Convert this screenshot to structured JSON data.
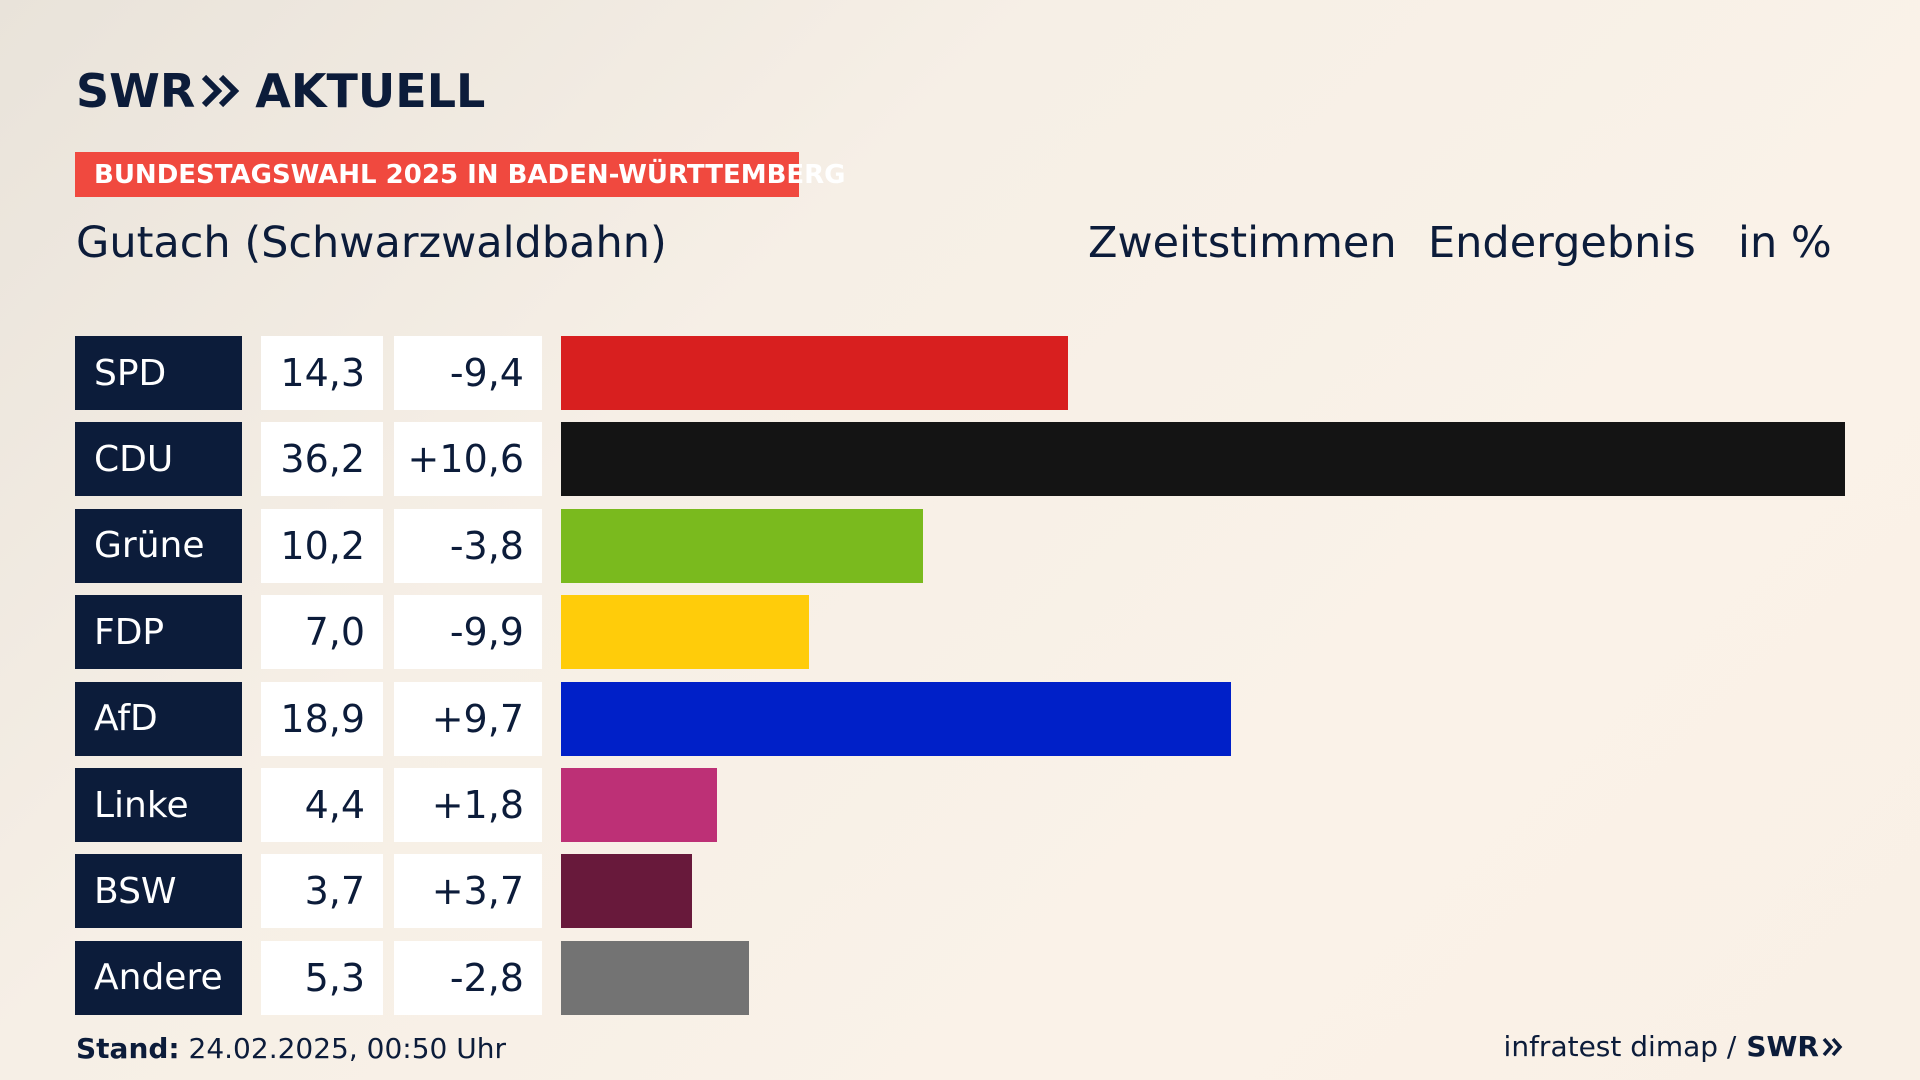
{
  "brand": {
    "logo_left": "SWR",
    "logo_right": "AKTUELL",
    "chevron_icon": "double-chevron-right-icon"
  },
  "badge": "BUNDESTAGSWAHL 2025 IN BADEN-WÜRTTEMBERG",
  "region": "Gutach (Schwarzwaldbahn)",
  "header": {
    "vote_type": "Zweitstimmen",
    "result_type": "Endergebnis",
    "unit": "in %"
  },
  "footer": {
    "stand_label": "Stand:",
    "stand_value": "24.02.2025, 00:50 Uhr",
    "source": "infratest dimap /",
    "source_brand": "SWR"
  },
  "colors": {
    "navy": "#0c1c3a",
    "badge": "#f0493f"
  },
  "chart_data": {
    "type": "bar",
    "orientation": "horizontal",
    "categories": [
      "SPD",
      "CDU",
      "Grüne",
      "FDP",
      "AfD",
      "Linke",
      "BSW",
      "Andere"
    ],
    "values": [
      14.3,
      36.2,
      10.2,
      7.0,
      18.9,
      4.4,
      3.7,
      5.3
    ],
    "value_labels": [
      "14,3",
      "36,2",
      "10,2",
      "7,0",
      "18,9",
      "4,4",
      "3,7",
      "5,3"
    ],
    "diff_values": [
      -9.4,
      10.6,
      -3.8,
      -9.9,
      9.7,
      1.8,
      3.7,
      -2.8
    ],
    "diff_labels": [
      "-9,4",
      "+10,6",
      "-3,8",
      "-9,9",
      "+9,7",
      "+1,8",
      "+3,7",
      "-2,8"
    ],
    "colors": [
      "#d81f1f",
      "#141414",
      "#7aba1e",
      "#ffcc0a",
      "#0020c8",
      "#bd3076",
      "#68193b",
      "#737373"
    ],
    "xlim": [
      0,
      36.2
    ],
    "title": "Gutach (Schwarzwaldbahn)",
    "xlabel": "",
    "ylabel": ""
  }
}
